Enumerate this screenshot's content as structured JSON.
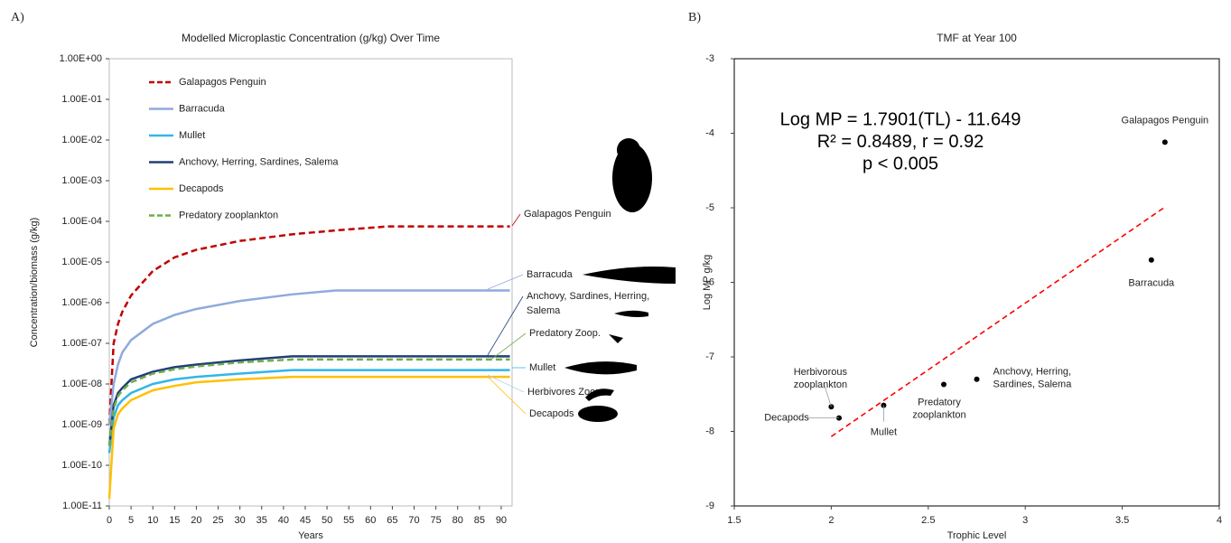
{
  "panel_labels": [
    "A)",
    "B)"
  ],
  "chart_data": [
    {
      "type": "line",
      "title": "Modelled Microplastic Concentration (g/kg) Over Time",
      "x_label": "Years",
      "y_label": "Concentration/biomass (g/kg)",
      "log_y": true,
      "x": [
        0,
        1,
        2,
        3,
        5,
        10,
        15,
        20,
        30,
        42,
        52,
        64,
        92
      ],
      "xlim": [
        0,
        92.5
      ],
      "xticks": [
        0,
        5,
        10,
        15,
        20,
        25,
        30,
        35,
        40,
        45,
        50,
        55,
        60,
        65,
        70,
        75,
        80,
        85,
        90
      ],
      "ylim": [
        1e-11,
        1
      ],
      "yticks": [
        {
          "value": 1e-11,
          "label": "1.00E-11"
        },
        {
          "value": 1e-10,
          "label": "1.00E-10"
        },
        {
          "value": 1e-09,
          "label": "1.00E-09"
        },
        {
          "value": 1e-08,
          "label": "1.00E-08"
        },
        {
          "value": 1e-07,
          "label": "1.00E-07"
        },
        {
          "value": 1e-06,
          "label": "1.00E-06"
        },
        {
          "value": 1e-05,
          "label": "1.00E-05"
        },
        {
          "value": 0.0001,
          "label": "1.00E-04"
        },
        {
          "value": 0.001,
          "label": "1.00E-03"
        },
        {
          "value": 0.01,
          "label": "1.00E-02"
        },
        {
          "value": 0.1,
          "label": "1.00E-01"
        },
        {
          "value": 1,
          "label": "1.00E+00"
        }
      ],
      "series": [
        {
          "name": "Galapagos Penguin",
          "color": "#c00000",
          "dashed": true,
          "values": [
            1e-09,
            1e-07,
            3e-07,
            6e-07,
            1.5e-06,
            6e-06,
            1.3e-05,
            2e-05,
            3.3e-05,
            4.8e-05,
            6e-05,
            7.5e-05,
            7.5e-05
          ]
        },
        {
          "name": "Barracuda",
          "color": "#8faadc",
          "dashed": false,
          "values": [
            1e-09,
            1e-08,
            3e-08,
            6e-08,
            1.2e-07,
            3e-07,
            5e-07,
            7e-07,
            1.1e-06,
            1.6e-06,
            2e-06,
            2e-06,
            2e-06
          ]
        },
        {
          "name": "Mullet",
          "color": "#33b5ea",
          "dashed": false,
          "values": [
            2e-10,
            1.5e-09,
            3e-09,
            4e-09,
            6e-09,
            1e-08,
            1.3e-08,
            1.5e-08,
            1.8e-08,
            2.2e-08,
            2.2e-08,
            2.2e-08,
            2.2e-08
          ]
        },
        {
          "name": "Anchovy, Herring, Sardines, Salema",
          "color": "#203f7a",
          "dashed": false,
          "values": [
            3e-10,
            3e-09,
            6e-09,
            8e-09,
            1.3e-08,
            2e-08,
            2.6e-08,
            3e-08,
            3.8e-08,
            4.8e-08,
            4.8e-08,
            4.8e-08,
            4.8e-08
          ]
        },
        {
          "name": "Decapods",
          "color": "#ffc000",
          "dashed": false,
          "values": [
            1.5e-11,
            8e-10,
            1.8e-09,
            2.5e-09,
            4e-09,
            7e-09,
            9e-09,
            1.1e-08,
            1.3e-08,
            1.5e-08,
            1.5e-08,
            1.5e-08,
            1.5e-08
          ]
        },
        {
          "name": "Predatory zooplankton",
          "color": "#70ad47",
          "dashed": true,
          "values": [
            3e-10,
            2.5e-09,
            5e-09,
            7e-09,
            1.1e-08,
            1.8e-08,
            2.3e-08,
            2.7e-08,
            3.4e-08,
            4e-08,
            4e-08,
            4e-08,
            4e-08
          ]
        }
      ],
      "annotations": [
        [
          "Galapagos Penguin"
        ],
        [
          "Barracuda"
        ],
        [
          "Anchovy, Sardines, Herring,",
          "Salema"
        ],
        [
          "Predatory Zoop."
        ],
        [
          "Mullet"
        ],
        [
          "Herbivores Zoop."
        ],
        [
          "Decapods"
        ]
      ]
    },
    {
      "type": "scatter",
      "title": "TMF at Year 100",
      "x_label": "Trophic Level",
      "y_label": "Log MP g/kg",
      "xlim": [
        1.5,
        4
      ],
      "xticks": [
        1.5,
        2,
        2.5,
        3,
        3.5,
        4
      ],
      "ylim": [
        -9,
        -3
      ],
      "yticks": [
        -9,
        -8,
        -7,
        -6,
        -5,
        -4,
        -3
      ],
      "x": [
        3.72,
        3.65,
        2.75,
        2.58,
        2.27,
        2.0,
        2.04
      ],
      "y": [
        -4.12,
        -5.7,
        -7.3,
        -7.37,
        -7.65,
        -7.67,
        -7.82
      ],
      "labels": [
        [
          "Galapagos Penguin"
        ],
        [
          "Barracuda"
        ],
        [
          "Anchovy, Herring,",
          "Sardines, Salema"
        ],
        [
          "Predatory",
          "zooplankton"
        ],
        [
          "Mullet"
        ],
        [
          "Herbivorous",
          "zooplankton"
        ],
        [
          "Decapods"
        ]
      ],
      "color": "#000000",
      "trendline": {
        "slope": 1.7901,
        "intercept": -11.649,
        "x_range": [
          2.0,
          3.72
        ],
        "color": "#ff0000"
      },
      "equation": [
        "Log MP = 1.7901(TL) - 11.649",
        "R² = 0.8489, r = 0.92",
        "p < 0.005"
      ]
    }
  ]
}
